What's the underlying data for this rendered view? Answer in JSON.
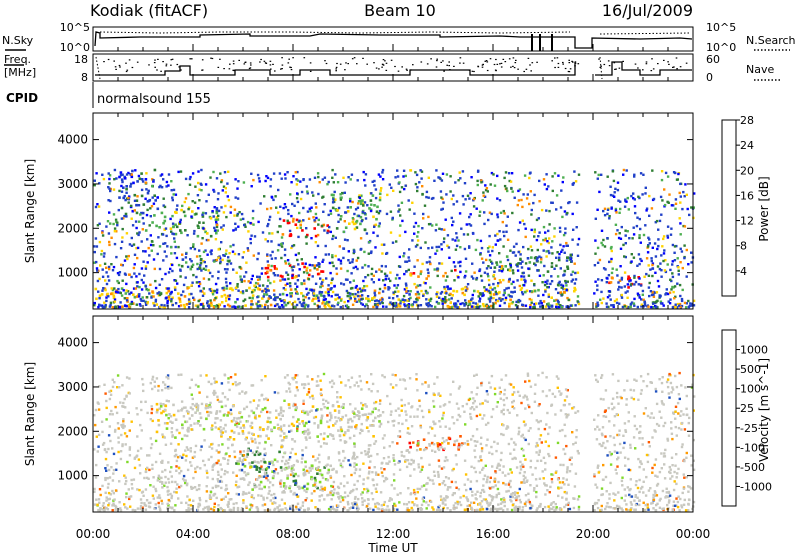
{
  "header": {
    "site": "Kodiak (fitACF)",
    "beam": "Beam 10",
    "date": "16/Jul/2009"
  },
  "strip": {
    "nsky_label": "N.Sky",
    "nsearch_label": "N.Search",
    "freq_label_1": "Freq.",
    "freq_label_2": "[MHz]",
    "nave_label": "Nave",
    "cpid_label": "CPID",
    "cpid_value": "normalsound 155",
    "noise_ticks": [
      "10^5",
      "10^0"
    ],
    "freq_ticks": [
      "18",
      "8"
    ],
    "nave_ticks": [
      "60",
      "0"
    ]
  },
  "axes": {
    "ylabel": "Slant Range [km]",
    "xlabel": "Time UT",
    "yticks": [
      "1000",
      "2000",
      "3000",
      "4000"
    ],
    "xticks": [
      "00:00",
      "04:00",
      "08:00",
      "12:00",
      "16:00",
      "20:00",
      "00:00"
    ]
  },
  "colors": {
    "power": [
      "#0000ff",
      "#2040c8",
      "#2e7d32",
      "#4caf50",
      "#ffd400",
      "#ff8c00",
      "#ff0000"
    ],
    "velocity": [
      "#ff0000",
      "#ff5a00",
      "#ff9a00",
      "#ffc200",
      "#c8c8c0",
      "#7fd92a",
      "#2e7d32",
      "#1e50c0",
      "#1030a0"
    ]
  },
  "chart_data": [
    {
      "type": "heatmap",
      "title": "Power",
      "colorbar_label": "Power [dB]",
      "colorbar_ticks": [
        "4",
        "8",
        "12",
        "16",
        "20",
        "24",
        "28"
      ],
      "xlabel": "Time UT",
      "ylabel": "Slant Range [km]",
      "xlim": [
        "00:00",
        "00:00"
      ],
      "ylim": [
        180,
        4600
      ],
      "gap_hours": [
        19.4,
        20.0
      ],
      "regions": [
        {
          "t0": 1.0,
          "t1": 2.6,
          "r0": 2300,
          "r1": 3300,
          "level": 1
        },
        {
          "t0": 2.0,
          "t1": 5.0,
          "r0": 1800,
          "r1": 2400,
          "level": 3
        },
        {
          "t0": 3.5,
          "t1": 4.8,
          "r0": 1050,
          "r1": 1300,
          "level": 2
        },
        {
          "t0": 6.8,
          "t1": 9.2,
          "r0": 850,
          "r1": 1250,
          "level": 6
        },
        {
          "t0": 7.5,
          "t1": 9.5,
          "r0": 1800,
          "r1": 2200,
          "level": 6
        },
        {
          "t0": 9.5,
          "t1": 11.5,
          "r0": 1900,
          "r1": 2800,
          "level": 3
        },
        {
          "t0": 12.5,
          "t1": 14.5,
          "r0": 850,
          "r1": 1050,
          "level": 5
        },
        {
          "t0": 16.0,
          "t1": 19.2,
          "r0": 1000,
          "r1": 1400,
          "level": 2
        },
        {
          "t0": 20.3,
          "t1": 22.0,
          "r0": 650,
          "r1": 900,
          "level": 6
        },
        {
          "t0": 0.0,
          "t1": 19.3,
          "r0": 200,
          "r1": 650,
          "level": 4
        }
      ]
    },
    {
      "type": "heatmap",
      "title": "Velocity",
      "colorbar_label": "Velocity [m s^-1]",
      "colorbar_ticks": [
        "1000",
        "500",
        "100",
        "25",
        "-25",
        "-100",
        "-500",
        "-1000"
      ],
      "xlabel": "Time UT",
      "ylabel": "Slant Range [km]",
      "xlim": [
        "00:00",
        "00:00"
      ],
      "ylim": [
        180,
        4600
      ],
      "gap_hours": [
        19.4,
        20.0
      ],
      "regions": [
        {
          "t0": 6.0,
          "t1": 9.5,
          "r0": 600,
          "r1": 1300,
          "level": 5
        },
        {
          "t0": 5.5,
          "t1": 7.5,
          "r0": 1100,
          "r1": 1600,
          "level": 6
        },
        {
          "t0": 12.6,
          "t1": 15.0,
          "r0": 1550,
          "r1": 1900,
          "level": 1
        },
        {
          "t0": 2.5,
          "t1": 11.5,
          "r0": 1800,
          "r1": 2600,
          "level": 4
        },
        {
          "t0": 14.5,
          "t1": 16.0,
          "r0": 200,
          "r1": 400,
          "level": 3
        }
      ]
    }
  ]
}
